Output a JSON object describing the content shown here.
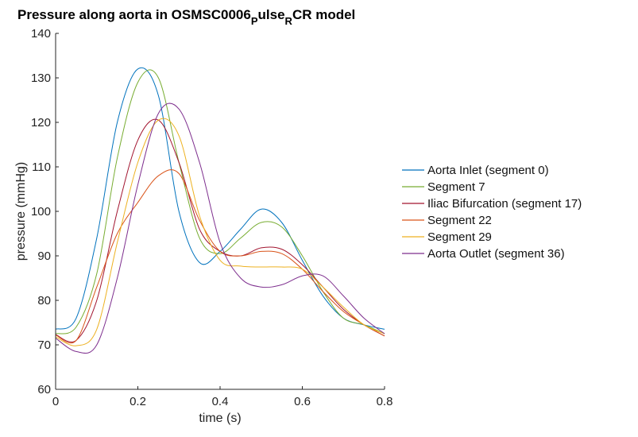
{
  "chart_data": {
    "type": "line",
    "title": {
      "prefix": "Pressure along aorta in OSMSC0006",
      "sub1": "P",
      "mid": "ulse",
      "sub2": "R",
      "suffix": "CR model"
    },
    "xlabel": "time (s)",
    "ylabel": "pressure (mmHg)",
    "xlim": [
      0,
      0.8
    ],
    "ylim": [
      60,
      140
    ],
    "xticks": [
      0,
      0.2,
      0.4,
      0.6,
      0.8
    ],
    "xtick_labels": [
      "0",
      "0.2",
      "0.4",
      "0.6",
      "0.8"
    ],
    "yticks": [
      60,
      70,
      80,
      90,
      100,
      110,
      120,
      130,
      140
    ],
    "ytick_labels": [
      "60",
      "70",
      "80",
      "90",
      "100",
      "110",
      "120",
      "130",
      "140"
    ],
    "grid": false,
    "legend_position": "right",
    "x": [
      0,
      0.05,
      0.1,
      0.15,
      0.2,
      0.25,
      0.3,
      0.35,
      0.4,
      0.45,
      0.5,
      0.55,
      0.6,
      0.65,
      0.7,
      0.75,
      0.8
    ],
    "series": [
      {
        "name": "Aorta Inlet (segment 0)",
        "color": "#0072BD",
        "values": [
          73.5,
          76,
          94,
          120,
          132,
          126,
          100,
          88.5,
          91,
          96,
          100.5,
          97.5,
          89,
          81,
          76,
          74.5,
          73.5
        ]
      },
      {
        "name": "Segment 7",
        "color": "#77AC30",
        "values": [
          72.5,
          74,
          86,
          112,
          129,
          130,
          111,
          94,
          90.5,
          94,
          97.5,
          96.5,
          90,
          82,
          76,
          74.5,
          72.5
        ]
      },
      {
        "name": "Iliac Bifurcation (segment 17)",
        "color": "#A2142F",
        "values": [
          72.3,
          71,
          80,
          100,
          116,
          120.5,
          111,
          96,
          91,
          90,
          91.8,
          91.5,
          88,
          83,
          78,
          74.5,
          72
        ]
      },
      {
        "name": "Segment 22",
        "color": "#D95319",
        "values": [
          72.2,
          71,
          83,
          95,
          102,
          108,
          108.5,
          98,
          91,
          90,
          91,
          90.5,
          87,
          82,
          77.5,
          74.5,
          72
        ]
      },
      {
        "name": "Segment 29",
        "color": "#EDB120",
        "values": [
          71.8,
          69.8,
          73.5,
          93,
          111,
          120.5,
          117,
          99,
          89,
          87.7,
          87.5,
          87.5,
          87,
          83,
          78.5,
          74.5,
          72.5
        ]
      },
      {
        "name": "Aorta Outlet (segment 36)",
        "color": "#7E2F8E",
        "values": [
          71.5,
          68.5,
          70,
          85,
          106,
          122,
          123,
          111,
          93,
          85,
          83,
          83.5,
          85.5,
          85.5,
          81,
          76,
          72.5
        ]
      }
    ]
  }
}
